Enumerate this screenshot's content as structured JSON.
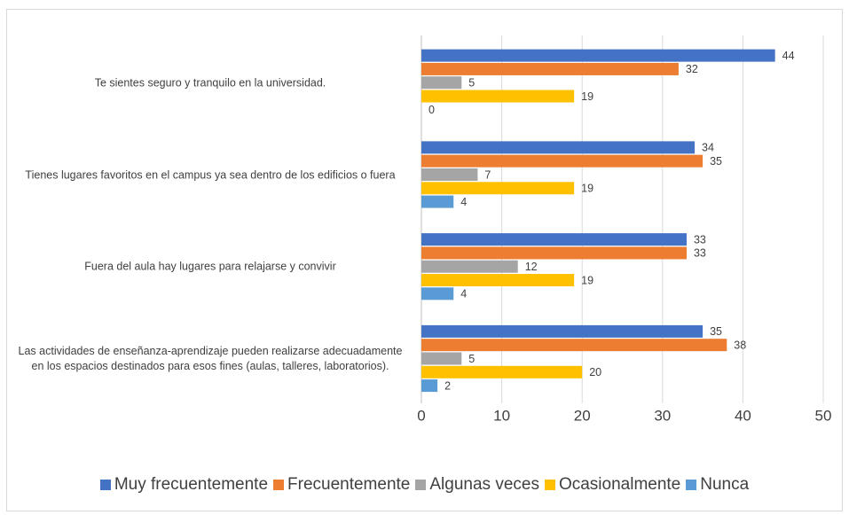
{
  "chart_data": {
    "type": "bar",
    "orientation": "horizontal",
    "categories": [
      "Te sientes seguro y tranquilo en la universidad.",
      "Tienes lugares favoritos en el campus ya sea dentro de los edificios o fuera",
      "Fuera del aula hay lugares para relajarse y convivir",
      "Las actividades de enseñanza-aprendizaje pueden realizarse adecuadamente en los espacios destinados para esos fines (aulas, talleres, laboratorios)."
    ],
    "series": [
      {
        "name": "Muy frecuentemente",
        "color": "#4472c4",
        "values": [
          44,
          34,
          33,
          35
        ]
      },
      {
        "name": "Frecuentemente",
        "color": "#ed7d31",
        "values": [
          32,
          35,
          33,
          38
        ]
      },
      {
        "name": "Algunas veces",
        "color": "#a5a5a5",
        "values": [
          5,
          7,
          12,
          5
        ]
      },
      {
        "name": "Ocasionalmente",
        "color": "#ffc000",
        "values": [
          19,
          19,
          19,
          20
        ]
      },
      {
        "name": "Nunca",
        "color": "#5b9bd5",
        "values": [
          0,
          4,
          4,
          2
        ]
      }
    ],
    "xlim": [
      0,
      50
    ],
    "xticks": [
      0,
      10,
      20,
      30,
      40,
      50
    ],
    "grid": true,
    "legend": "bottom"
  }
}
